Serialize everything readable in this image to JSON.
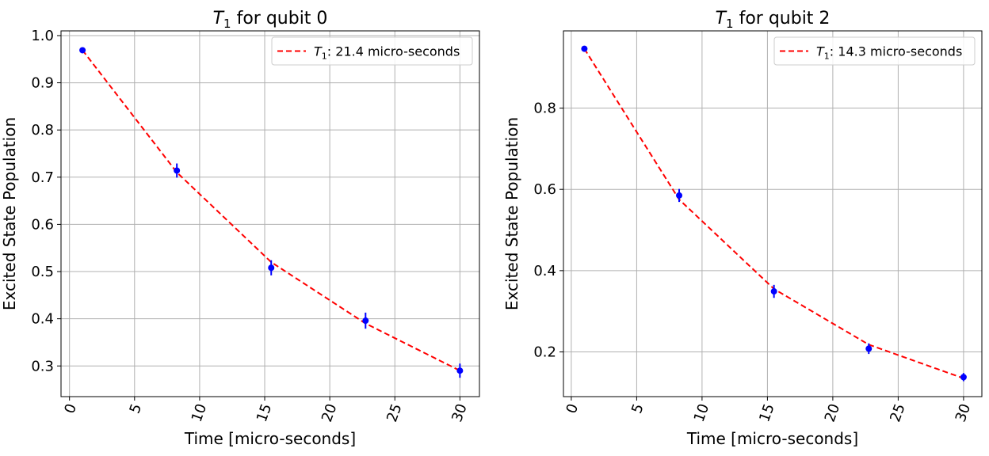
{
  "chart_data": [
    {
      "type": "scatter",
      "title_symbol": "T",
      "title_sub": "1",
      "title_rest": " for qubit 0",
      "xlabel": "Time [micro-seconds]",
      "ylabel": "Excited State Population",
      "xlim": [
        -0.65,
        31.5
      ],
      "ylim": [
        0.235,
        1.01
      ],
      "xticks": [
        0,
        5,
        10,
        15,
        20,
        25,
        30
      ],
      "yticks": [
        0.3,
        0.4,
        0.5,
        0.6,
        0.7,
        0.8,
        0.9,
        1.0
      ],
      "ytick_labels": [
        "0.3",
        "0.4",
        "0.5",
        "0.6",
        "0.7",
        "0.8",
        "0.9",
        "1.0"
      ],
      "grid": true,
      "legend_position": "top-right",
      "series": [
        {
          "kind": "errorbar",
          "color": "#0000ff",
          "x": [
            1,
            8.25,
            15.5,
            22.75,
            30
          ],
          "y": [
            0.969,
            0.714,
            0.508,
            0.396,
            0.29
          ],
          "yerr": [
            0.004,
            0.015,
            0.016,
            0.017,
            0.015
          ]
        },
        {
          "kind": "fit",
          "color": "#ff0000",
          "legend_symbol": "T",
          "legend_sub": "1",
          "legend_rest": ": 21.4 micro-seconds",
          "x": [
            1,
            8.25,
            15.5,
            22.75,
            30
          ],
          "y": [
            0.969,
            0.71,
            0.52,
            0.39,
            0.29
          ]
        }
      ]
    },
    {
      "type": "scatter",
      "title_symbol": "T",
      "title_sub": "1",
      "title_rest": " for qubit 2",
      "xlabel": "Time [micro-seconds]",
      "ylabel": "Excited State Population",
      "xlim": [
        -0.6,
        31.4
      ],
      "ylim": [
        0.09,
        0.99
      ],
      "xticks": [
        0,
        5,
        10,
        15,
        20,
        25,
        30
      ],
      "yticks": [
        0.2,
        0.4,
        0.6,
        0.8
      ],
      "ytick_labels": [
        "0.2",
        "0.4",
        "0.6",
        "0.8"
      ],
      "grid": true,
      "legend_position": "top-right",
      "series": [
        {
          "kind": "errorbar",
          "color": "#0000ff",
          "x": [
            1,
            8.25,
            15.5,
            22.75,
            30
          ],
          "y": [
            0.946,
            0.585,
            0.349,
            0.208,
            0.138
          ],
          "yerr": [
            0.004,
            0.016,
            0.016,
            0.013,
            0.01
          ]
        },
        {
          "kind": "fit",
          "color": "#ff0000",
          "legend_symbol": "T",
          "legend_sub": "1",
          "legend_rest": ": 14.3 micro-seconds",
          "x": [
            1,
            8.25,
            15.5,
            22.75,
            30
          ],
          "y": [
            0.946,
            0.575,
            0.355,
            0.218,
            0.135
          ]
        }
      ]
    }
  ]
}
